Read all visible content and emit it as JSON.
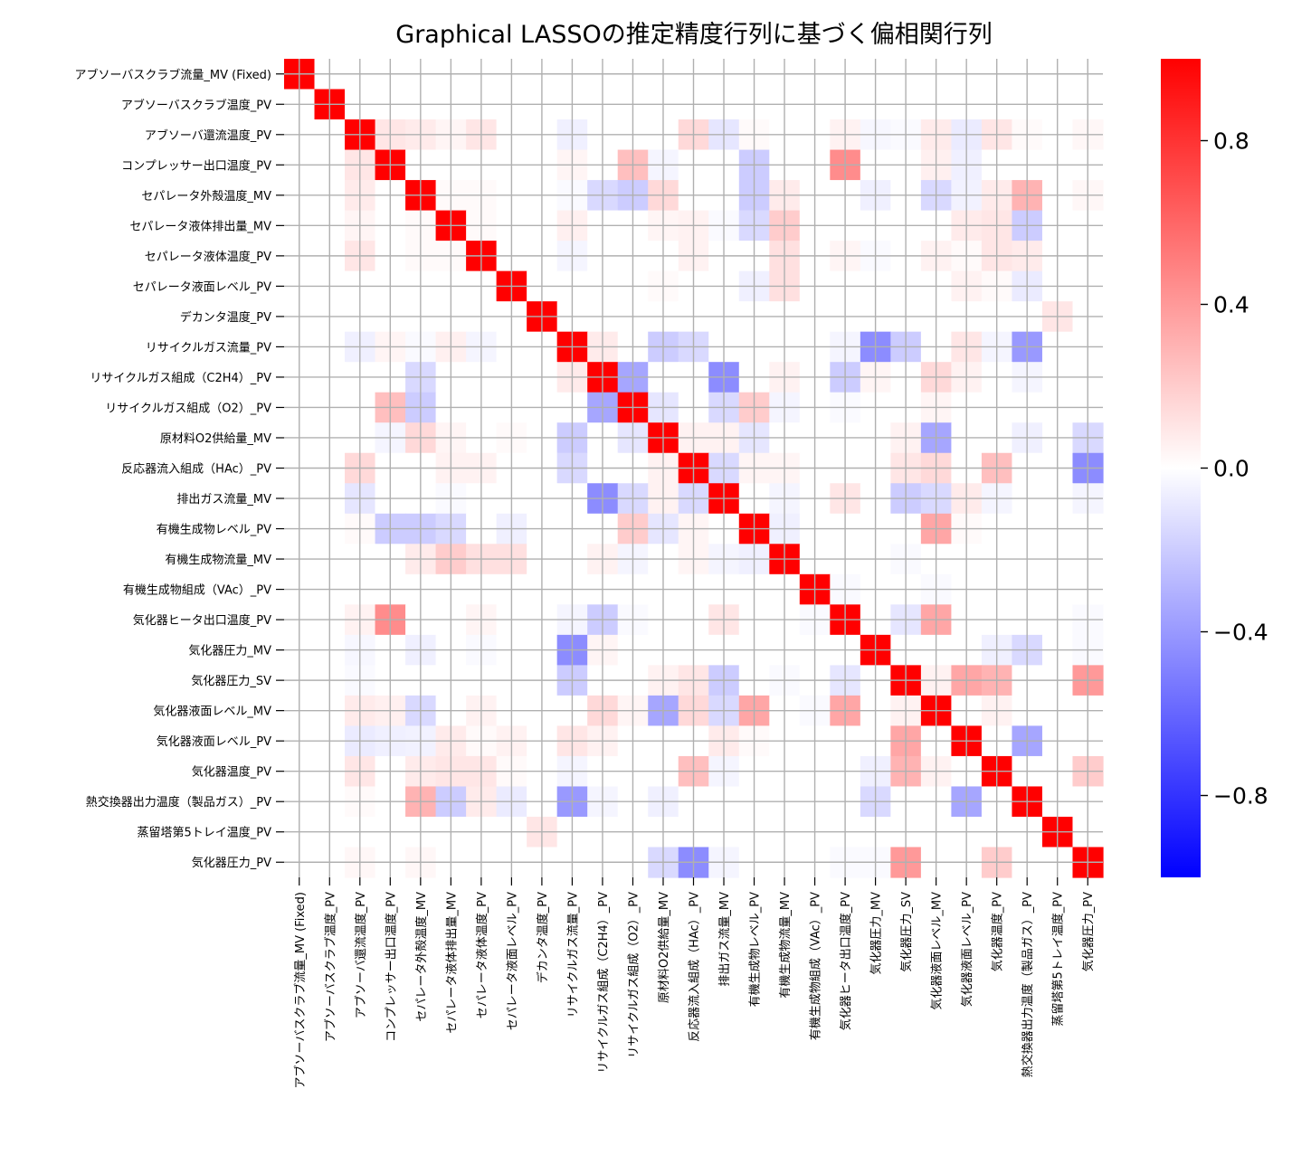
{
  "chart_data": {
    "type": "heatmap",
    "title": "Graphical LASSOの推定精度行列に基づく偏相関行列",
    "labels": [
      "アブソーバスクラブ流量_MV (Fixed)",
      "アブソーバスクラブ温度_PV",
      "アブソーバ還流温度_PV",
      "コンプレッサー出口温度_PV",
      "セパレータ外殻温度_MV",
      "セパレータ液体排出量_MV",
      "セパレータ液体温度_PV",
      "セパレータ液面レベル_PV",
      "デカンタ温度_PV",
      "リサイクルガス流量_PV",
      "リサイクルガス組成（C2H4）_PV",
      "リサイクルガス組成（O2）_PV",
      "原材料O2供給量_MV",
      "反応器流入組成（HAc）_PV",
      "排出ガス流量_MV",
      "有機生成物レベル_PV",
      "有機生成物流量_MV",
      "有機生成物組成（VAc）_PV",
      "気化器ヒータ出口温度_PV",
      "気化器圧力_MV",
      "気化器圧力_SV",
      "気化器液面レベル_MV",
      "気化器液面レベル_PV",
      "気化器温度_PV",
      "熱交換器出力温度（製品ガス）_PV",
      "蒸留塔第5トレイ温度_PV",
      "気化器圧力_PV"
    ],
    "colorbar": {
      "range": [
        -1,
        1
      ],
      "ticks": [
        0.8,
        0.4,
        0.0,
        -0.4,
        -0.8
      ],
      "tick_labels": [
        "0.8",
        "0.4",
        "0.0",
        "−0.4",
        "−0.8"
      ],
      "colormap": "bwr",
      "low_color": "#0000ff",
      "mid_color": "#ffffff",
      "high_color": "#ff0000"
    },
    "grid": true,
    "values": [
      [
        1,
        0,
        0,
        0,
        0,
        0,
        0,
        0,
        0,
        0,
        0,
        0,
        0,
        0,
        0,
        0,
        0,
        0,
        0,
        0,
        0,
        0,
        0,
        0,
        0,
        0,
        0
      ],
      [
        0,
        1,
        0,
        0,
        0,
        0,
        0,
        0,
        0,
        0,
        0,
        0,
        0,
        0,
        0,
        0,
        0,
        0,
        0,
        0,
        0,
        0,
        0,
        0,
        0,
        0,
        0
      ],
      [
        0,
        0,
        1,
        0.1,
        0.08,
        0.04,
        0.1,
        0,
        0,
        -0.06,
        0,
        0,
        0,
        0.15,
        -0.1,
        0.02,
        0,
        0,
        0.05,
        -0.03,
        -0.02,
        0.08,
        -0.08,
        0.1,
        0.02,
        0,
        0.03
      ],
      [
        0,
        0,
        0.1,
        1,
        0,
        0,
        0,
        0,
        0,
        0.04,
        0,
        0.25,
        -0.04,
        0,
        0,
        -0.2,
        0,
        0,
        0.45,
        0,
        0,
        0.06,
        -0.06,
        0,
        0,
        0,
        0
      ],
      [
        0,
        0,
        0.08,
        0,
        1,
        0.02,
        0.02,
        0,
        0,
        -0.02,
        -0.15,
        -0.2,
        0.15,
        0,
        0,
        -0.2,
        0.08,
        0,
        0,
        -0.06,
        0,
        -0.15,
        -0.05,
        0.08,
        0.3,
        0,
        0.03
      ],
      [
        0,
        0,
        0.04,
        0,
        0.02,
        1,
        0.02,
        0,
        0,
        0.06,
        0,
        0,
        0.04,
        0.05,
        -0.02,
        -0.15,
        0.2,
        0,
        0,
        0,
        0,
        0,
        0.08,
        0.1,
        -0.2,
        0,
        0
      ],
      [
        0,
        0,
        0.1,
        0,
        0.02,
        0.02,
        1,
        0,
        0,
        -0.04,
        0,
        0,
        0,
        0.05,
        0,
        0,
        0.12,
        0,
        0.04,
        -0.02,
        0,
        0.05,
        0.02,
        0.1,
        0.08,
        0,
        0
      ],
      [
        0,
        0,
        0,
        0,
        0,
        0,
        0,
        1,
        0,
        0,
        0,
        0,
        0.02,
        0,
        0,
        -0.06,
        0.12,
        0,
        0,
        0,
        0,
        0,
        0.05,
        0.02,
        -0.08,
        0,
        0
      ],
      [
        0,
        0,
        0,
        0,
        0,
        0,
        0,
        0,
        1,
        0,
        0,
        0,
        0,
        0,
        0,
        0,
        0,
        0,
        0,
        0,
        0,
        0,
        0,
        0,
        0,
        0.1,
        0
      ],
      [
        0,
        0,
        -0.06,
        0.04,
        -0.02,
        0.06,
        -0.04,
        0,
        0,
        1,
        0.08,
        0,
        -0.2,
        -0.15,
        0,
        0,
        0,
        0,
        -0.04,
        -0.45,
        -0.2,
        0,
        0.1,
        -0.04,
        -0.4,
        0,
        0
      ],
      [
        0,
        0,
        0,
        0,
        -0.15,
        0,
        0,
        0,
        0,
        0.08,
        1,
        -0.35,
        0,
        0,
        -0.45,
        0,
        0.05,
        0,
        -0.2,
        0.04,
        0,
        0.15,
        0.05,
        0,
        -0.04,
        0,
        0
      ],
      [
        0,
        0,
        0,
        0.25,
        -0.2,
        0,
        0,
        0,
        0,
        0,
        -0.35,
        1,
        -0.1,
        0,
        -0.15,
        0.2,
        -0.04,
        0,
        -0.02,
        0,
        0,
        0.04,
        0,
        0,
        0,
        0,
        0
      ],
      [
        0,
        0,
        0,
        -0.04,
        0.15,
        0.04,
        0,
        0.02,
        0,
        -0.2,
        0,
        -0.1,
        1,
        0.05,
        0.05,
        -0.1,
        0,
        0,
        0,
        0,
        0.05,
        -0.35,
        0,
        0,
        -0.06,
        0,
        -0.15
      ],
      [
        0,
        0,
        0.15,
        0,
        0,
        0.05,
        0.05,
        0,
        0,
        -0.15,
        0,
        0,
        0.05,
        1,
        -0.15,
        0.04,
        0.04,
        0,
        0,
        0,
        0.1,
        0.15,
        0,
        0.25,
        0,
        0,
        -0.45
      ],
      [
        0,
        0,
        -0.1,
        0,
        0,
        -0.02,
        0,
        0,
        0,
        0,
        -0.45,
        -0.15,
        0.05,
        -0.15,
        1,
        0,
        -0.04,
        0,
        0.1,
        0,
        -0.2,
        -0.15,
        0.08,
        -0.04,
        0,
        0,
        -0.04
      ],
      [
        0,
        0,
        0.02,
        -0.2,
        -0.2,
        -0.15,
        0,
        -0.06,
        0,
        0,
        0,
        0.2,
        -0.1,
        0.04,
        0,
        1,
        -0.06,
        0,
        0,
        0,
        0,
        0.35,
        0.02,
        0,
        0,
        0,
        0
      ],
      [
        0,
        0,
        0,
        0,
        0.08,
        0.2,
        0.12,
        0.12,
        0,
        0,
        0.05,
        -0.04,
        0,
        0.04,
        -0.04,
        -0.06,
        1,
        0,
        0,
        0,
        -0.02,
        0,
        0,
        0,
        0,
        0,
        0
      ],
      [
        0,
        0,
        0,
        0,
        0,
        0,
        0,
        0,
        0,
        0,
        0,
        0,
        0,
        0,
        0,
        0,
        0,
        1,
        -0.02,
        0,
        0,
        -0.02,
        0,
        0,
        0,
        0,
        0
      ],
      [
        0,
        0,
        0.05,
        0.45,
        0,
        0,
        0.04,
        0,
        0,
        -0.04,
        -0.2,
        -0.02,
        0,
        0,
        0.1,
        0,
        0,
        -0.02,
        1,
        0,
        -0.1,
        0.35,
        0,
        0,
        0,
        0,
        -0.02
      ],
      [
        0,
        0,
        -0.03,
        0,
        -0.06,
        0,
        -0.02,
        0,
        0,
        -0.45,
        0.04,
        0,
        0,
        0,
        0,
        0,
        0,
        0,
        0,
        1,
        0,
        0,
        0,
        -0.06,
        -0.15,
        0,
        -0.02
      ],
      [
        0,
        0,
        -0.02,
        0,
        0,
        0,
        0,
        0,
        0,
        -0.2,
        0,
        0,
        0.05,
        0.1,
        -0.2,
        0,
        -0.02,
        0,
        -0.1,
        0,
        1,
        0.05,
        0.35,
        0.3,
        0,
        0,
        0.4
      ],
      [
        0,
        0,
        0.08,
        0.06,
        -0.15,
        0,
        0.05,
        0,
        0,
        0,
        0.15,
        0.04,
        -0.35,
        0.15,
        -0.15,
        0.35,
        0,
        -0.02,
        0.35,
        0,
        0.05,
        1,
        0,
        0.05,
        0,
        0,
        0
      ],
      [
        0,
        0,
        -0.08,
        -0.06,
        -0.05,
        0.08,
        0.02,
        0.05,
        0,
        0.1,
        0.05,
        0,
        0,
        0,
        0.08,
        0.02,
        0,
        0,
        0,
        0,
        0.35,
        0,
        1,
        0,
        -0.35,
        0,
        0
      ],
      [
        0,
        0,
        0.1,
        0,
        0.08,
        0.1,
        0.1,
        0.02,
        0,
        -0.04,
        0,
        0,
        0,
        0.25,
        -0.04,
        0,
        0,
        0,
        0,
        -0.06,
        0.3,
        0.05,
        0,
        1,
        0,
        0,
        0.2
      ],
      [
        0,
        0,
        0.02,
        0,
        0.3,
        -0.2,
        0.08,
        -0.08,
        0,
        -0.4,
        -0.04,
        0,
        -0.06,
        0,
        0,
        0,
        0,
        0,
        0,
        -0.15,
        0,
        0,
        -0.35,
        0,
        1,
        0,
        0
      ],
      [
        0,
        0,
        0,
        0,
        0,
        0,
        0,
        0,
        0.1,
        0,
        0,
        0,
        0,
        0,
        0,
        0,
        0,
        0,
        0,
        0,
        0,
        0,
        0,
        0,
        0,
        1,
        0
      ],
      [
        0,
        0,
        0.03,
        0,
        0.03,
        0,
        0,
        0,
        0,
        0,
        0,
        0,
        -0.15,
        -0.45,
        -0.04,
        0,
        0,
        0,
        -0.02,
        -0.02,
        0.4,
        0,
        0,
        0.2,
        0,
        0,
        1
      ]
    ]
  }
}
